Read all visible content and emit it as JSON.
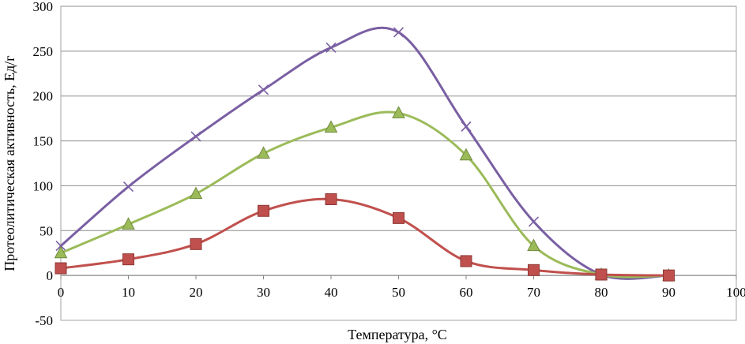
{
  "chart_data": {
    "type": "line",
    "title": "",
    "xlabel": "Температура, °С",
    "ylabel": "Протеолитическая активность, Ед/г",
    "xlim": [
      0,
      100
    ],
    "ylim": [
      -50,
      300
    ],
    "x_ticks": [
      0,
      10,
      20,
      30,
      40,
      50,
      60,
      70,
      80,
      90,
      100
    ],
    "y_ticks": [
      -50,
      0,
      50,
      100,
      150,
      200,
      250,
      300
    ],
    "grid": "horizontal",
    "smooth": true,
    "series": [
      {
        "color": "#7a5fa3",
        "marker": "x",
        "x": [
          0,
          10,
          20,
          30,
          40,
          50,
          60,
          70,
          80,
          90
        ],
        "y": [
          33,
          99,
          155,
          207,
          254,
          271,
          166,
          60,
          1,
          0
        ]
      },
      {
        "color": "#9bbb59",
        "marker": "triangle",
        "x": [
          0,
          10,
          20,
          30,
          40,
          50,
          60,
          70,
          80,
          90
        ],
        "y": [
          25,
          57,
          91,
          136,
          165,
          181,
          134,
          33,
          1,
          0
        ]
      },
      {
        "color": "#c0504d",
        "marker": "square",
        "x": [
          0,
          10,
          20,
          30,
          40,
          50,
          60,
          70,
          80,
          90
        ],
        "y": [
          8,
          18,
          35,
          72,
          85,
          64,
          16,
          6,
          1,
          0
        ]
      }
    ]
  }
}
